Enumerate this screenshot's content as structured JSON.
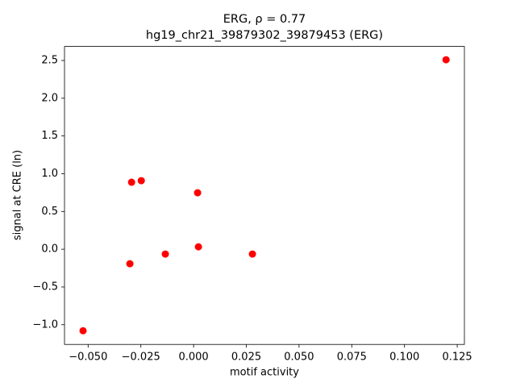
{
  "chart_data": {
    "type": "scatter",
    "title": "ERG, ρ = 0.77",
    "subtitle": "hg19_chr21_39879302_39879453 (ERG)",
    "x_label": "motif activity",
    "y_label": "signal at CRE (ln)",
    "color": "#ff0000",
    "x": [
      0.1197,
      -0.0524,
      -0.0294,
      -0.0248,
      0.0019,
      0.0023,
      -0.0134,
      -0.0302,
      0.0279
    ],
    "values": [
      2.51,
      -1.08,
      0.887,
      0.908,
      0.748,
      0.032,
      -0.064,
      -0.192,
      -0.064
    ],
    "xlim": [
      -0.0612,
      0.1284
    ],
    "ylim": [
      -1.261,
      2.686
    ],
    "xticks": [
      {
        "value": -0.05,
        "label": "−0.050"
      },
      {
        "value": -0.025,
        "label": "−0.025"
      },
      {
        "value": 0,
        "label": "0.000"
      },
      {
        "value": 0.025,
        "label": "0.025"
      },
      {
        "value": 0.05,
        "label": "0.050"
      },
      {
        "value": 0.075,
        "label": "0.075"
      },
      {
        "value": 0.1,
        "label": "0.100"
      },
      {
        "value": 0.125,
        "label": "0.125"
      }
    ],
    "yticks": [
      {
        "value": -1,
        "label": "−1.0"
      },
      {
        "value": -0.5,
        "label": "−0.5"
      },
      {
        "value": 0,
        "label": "0.0"
      },
      0.5,
      {
        "value": 1,
        "label": "1.0"
      },
      1.5,
      {
        "value": 2,
        "label": "2.0"
      },
      2.5
    ],
    "grid": false
  }
}
